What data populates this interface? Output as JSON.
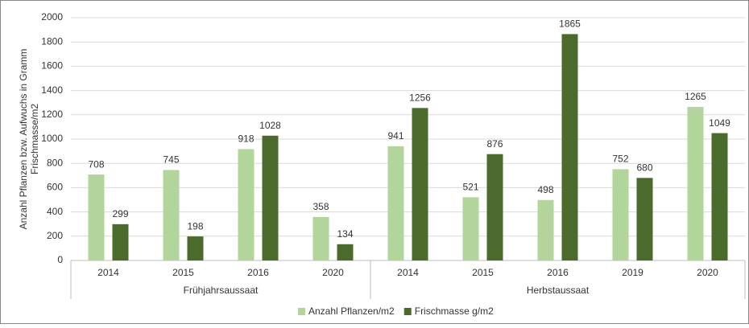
{
  "chart_data": {
    "type": "bar",
    "ylabel": [
      "Anzahl Pflanzen bzw. Aufwuchs in Gramm",
      "Frischmasse/m2"
    ],
    "groups": [
      {
        "name": "Frühjahrsaussaat",
        "categories": [
          "2014",
          "2015",
          "2016",
          "2020"
        ]
      },
      {
        "name": "Herbstaussaat",
        "categories": [
          "2014",
          "2015",
          "2016",
          "2019",
          "2020"
        ]
      }
    ],
    "series": [
      {
        "name": "Anzahl Pflanzen/m2",
        "color": "#b2d59b",
        "values": [
          708,
          745,
          918,
          358,
          941,
          521,
          498,
          752,
          1265
        ]
      },
      {
        "name": "Frischmasse g/m2",
        "color": "#4a6b2c",
        "values": [
          299,
          198,
          1028,
          134,
          1256,
          876,
          1865,
          680,
          1049
        ]
      }
    ],
    "ylim": [
      0,
      2000
    ],
    "yticks": [
      0,
      200,
      400,
      600,
      800,
      1000,
      1200,
      1400,
      1600,
      1800,
      2000
    ],
    "grid": true,
    "legend": "bottom"
  }
}
